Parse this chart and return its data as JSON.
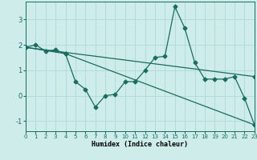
{
  "title": "",
  "xlabel": "Humidex (Indice chaleur)",
  "background_color": "#ceecea",
  "grid_color": "#aed8d4",
  "line_color": "#1a6b60",
  "xlim": [
    0,
    23
  ],
  "ylim": [
    -1.4,
    3.7
  ],
  "xticks": [
    0,
    1,
    2,
    3,
    4,
    5,
    6,
    7,
    8,
    9,
    10,
    11,
    12,
    13,
    14,
    15,
    16,
    17,
    18,
    19,
    20,
    21,
    22,
    23
  ],
  "yticks": [
    -1,
    0,
    1,
    2,
    3
  ],
  "series1_x": [
    0,
    1,
    2,
    3,
    4,
    5,
    6,
    7,
    8,
    9,
    10,
    11,
    12,
    13,
    14,
    15,
    16,
    17,
    18,
    19,
    20,
    21,
    22,
    23
  ],
  "series1_y": [
    1.9,
    2.0,
    1.75,
    1.8,
    1.65,
    0.55,
    0.25,
    -0.45,
    0.0,
    0.05,
    0.55,
    0.55,
    1.0,
    1.5,
    1.55,
    3.5,
    2.65,
    1.3,
    0.65,
    0.65,
    0.65,
    0.75,
    -0.1,
    -1.15
  ],
  "series2_x": [
    0,
    4,
    23
  ],
  "series2_y": [
    1.9,
    1.65,
    -1.15
  ],
  "series3_x": [
    0,
    23
  ],
  "series3_y": [
    1.9,
    0.75
  ]
}
